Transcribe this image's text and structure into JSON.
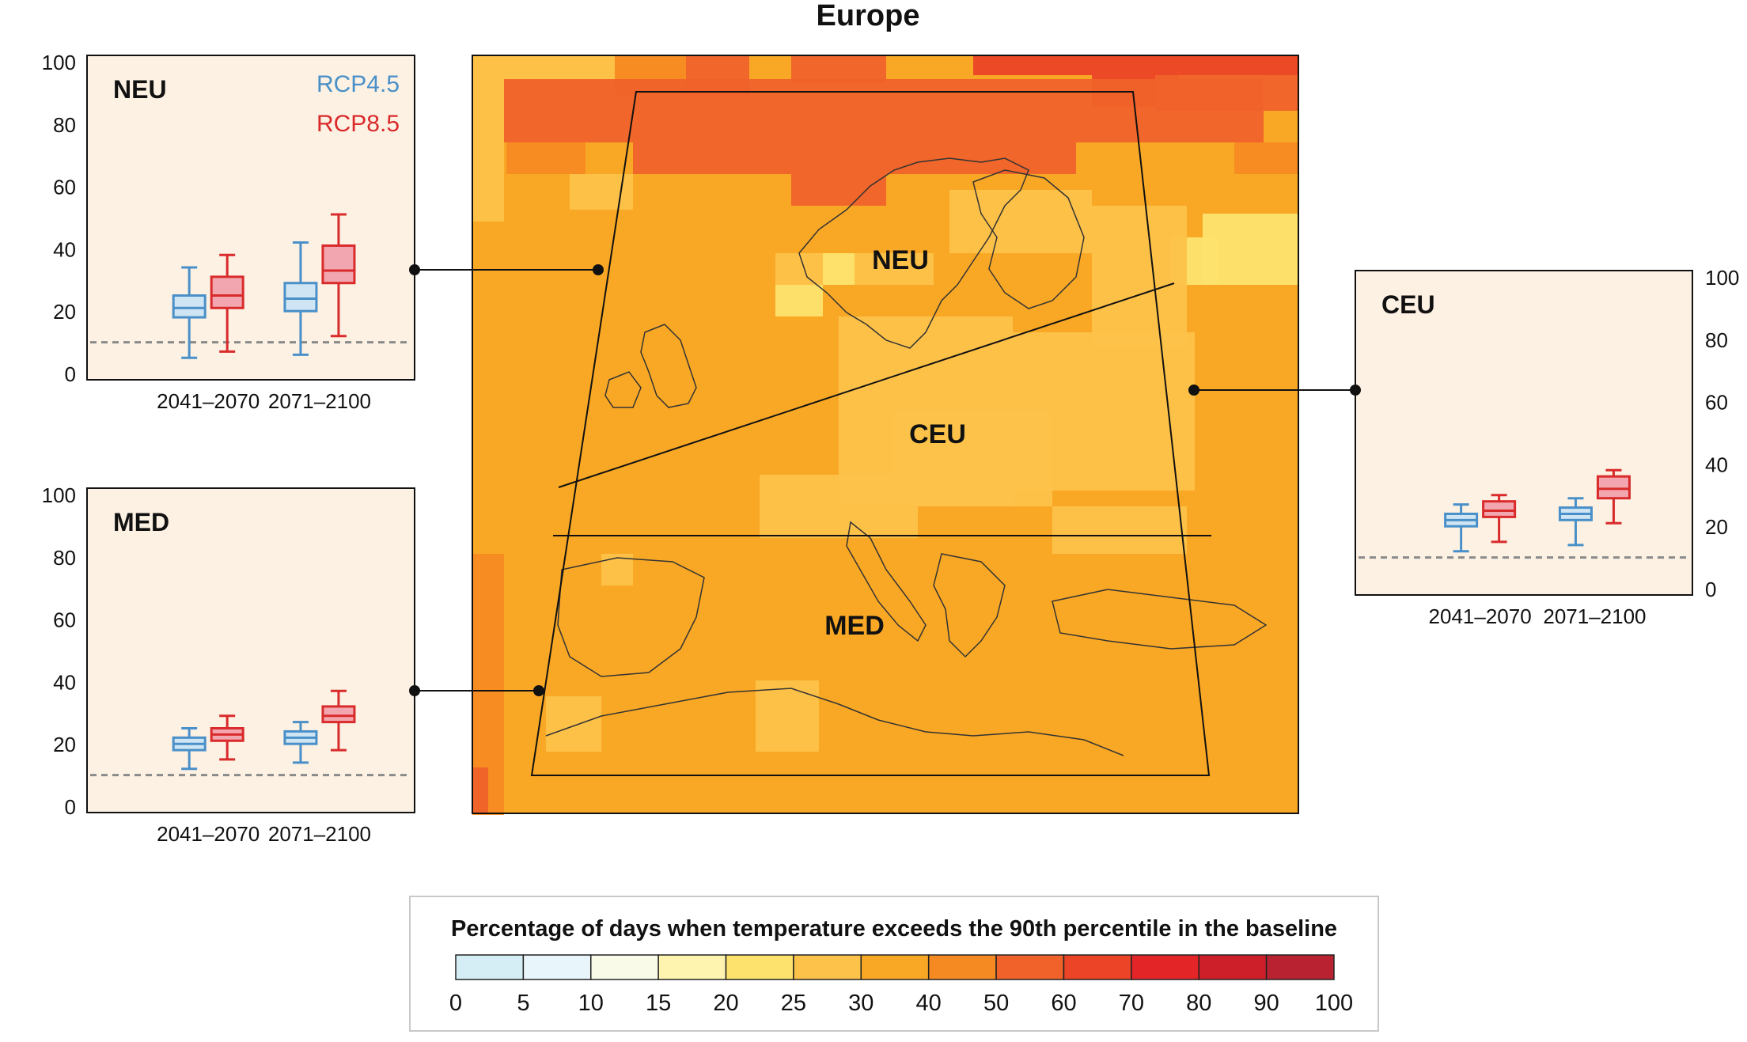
{
  "figure": {
    "title": "Europe"
  },
  "legend": {
    "scenarios": [
      {
        "name": "RCP4.5",
        "color": "#4a90c8"
      },
      {
        "name": "RCP8.5",
        "color": "#d92b2b"
      }
    ]
  },
  "colorbar": {
    "title": "Percentage of days when temperature exceeds the 90th percentile in the baseline",
    "ticks": [
      "0",
      "5",
      "10",
      "15",
      "20",
      "25",
      "30",
      "40",
      "50",
      "60",
      "70",
      "80",
      "90",
      "100"
    ],
    "colors": [
      "#d5eef6",
      "#e8f5fa",
      "#fafae8",
      "#fff3b0",
      "#fde36e",
      "#fdc24a",
      "#f9a825",
      "#f68a22",
      "#f0622a",
      "#eb4426",
      "#e42527",
      "#cd1f2a",
      "#b82231"
    ]
  },
  "map": {
    "region_labels": [
      "NEU",
      "CEU",
      "MED"
    ],
    "colors": {
      "base": "#f9a825",
      "light": "#fdc24a",
      "pale": "#fde36e",
      "warm": "#f68a22",
      "hot": "#f0622a",
      "hotter": "#eb4426"
    }
  },
  "chart_data": [
    {
      "type": "boxplot",
      "region": "NEU",
      "categories": [
        "2041–2070",
        "2071–2100"
      ],
      "ylim": [
        0,
        100
      ],
      "yticks": [
        "0",
        "20",
        "40",
        "60",
        "80",
        "100"
      ],
      "baseline": 10,
      "grid": false,
      "series": [
        {
          "name": "RCP4.5",
          "boxes": [
            {
              "min": 5,
              "q1": 18,
              "median": 21,
              "q3": 25,
              "max": 34
            },
            {
              "min": 6,
              "q1": 20,
              "median": 24,
              "q3": 29,
              "max": 42
            }
          ]
        },
        {
          "name": "RCP8.5",
          "boxes": [
            {
              "min": 7,
              "q1": 21,
              "median": 25,
              "q3": 31,
              "max": 38
            },
            {
              "min": 12,
              "q1": 29,
              "median": 33,
              "q3": 41,
              "max": 51
            }
          ]
        }
      ]
    },
    {
      "type": "boxplot",
      "region": "MED",
      "categories": [
        "2041–2070",
        "2071–2100"
      ],
      "ylim": [
        0,
        100
      ],
      "yticks": [
        "0",
        "20",
        "40",
        "60",
        "80",
        "100"
      ],
      "baseline": 10,
      "grid": false,
      "series": [
        {
          "name": "RCP4.5",
          "boxes": [
            {
              "min": 12,
              "q1": 18,
              "median": 20,
              "q3": 22,
              "max": 25
            },
            {
              "min": 14,
              "q1": 20,
              "median": 22,
              "q3": 24,
              "max": 27
            }
          ]
        },
        {
          "name": "RCP8.5",
          "boxes": [
            {
              "min": 15,
              "q1": 21,
              "median": 23,
              "q3": 25,
              "max": 29
            },
            {
              "min": 18,
              "q1": 27,
              "median": 29,
              "q3": 32,
              "max": 37
            }
          ]
        }
      ]
    },
    {
      "type": "boxplot",
      "region": "CEU",
      "categories": [
        "2041–2070",
        "2071–2100"
      ],
      "ylim": [
        0,
        100
      ],
      "yticks": [
        "0",
        "20",
        "40",
        "60",
        "80",
        "100"
      ],
      "baseline": 10,
      "grid": false,
      "series": [
        {
          "name": "RCP4.5",
          "boxes": [
            {
              "min": 12,
              "q1": 20,
              "median": 22,
              "q3": 24,
              "max": 27
            },
            {
              "min": 14,
              "q1": 22,
              "median": 24,
              "q3": 26,
              "max": 29
            }
          ]
        },
        {
          "name": "RCP8.5",
          "boxes": [
            {
              "min": 15,
              "q1": 23,
              "median": 25,
              "q3": 28,
              "max": 30
            },
            {
              "min": 21,
              "q1": 29,
              "median": 32,
              "q3": 36,
              "max": 38
            }
          ]
        }
      ]
    }
  ]
}
